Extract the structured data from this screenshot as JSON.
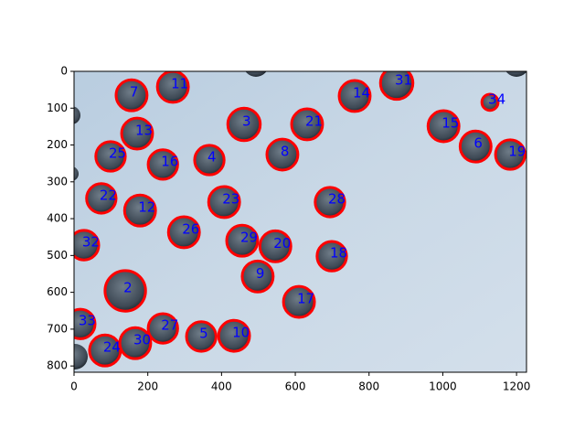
{
  "chart_data": {
    "type": "scatter",
    "x": [
      156,
      268,
      875,
      761,
      1128,
      461,
      632,
      1002,
      171,
      1089,
      1183,
      99,
      565,
      367,
      241,
      74,
      407,
      694,
      179,
      298,
      27,
      456,
      546,
      699,
      498,
      139,
      610,
      17,
      241,
      345,
      434,
      166,
      84
    ],
    "values": [
      65,
      42,
      32,
      67,
      84,
      144,
      144,
      149,
      169,
      204,
      226,
      231,
      226,
      241,
      253,
      345,
      355,
      355,
      378,
      437,
      472,
      460,
      475,
      502,
      557,
      596,
      626,
      686,
      698,
      720,
      718,
      738,
      758
    ],
    "sizes": [
      42,
      42,
      44,
      42,
      22,
      44,
      42,
      42,
      42,
      42,
      40,
      40,
      42,
      40,
      40,
      40,
      42,
      40,
      42,
      42,
      40,
      42,
      42,
      40,
      42,
      55,
      42,
      40,
      40,
      40,
      42,
      42,
      42
    ],
    "labels": [
      "7",
      "11",
      "31",
      "14",
      "34",
      "3",
      "21",
      "15",
      "13",
      "6",
      "19",
      "25",
      "8",
      "4",
      "16",
      "22",
      "23",
      "28",
      "12",
      "26",
      "32",
      "29",
      "20",
      "18",
      "9",
      "2",
      "17",
      "33",
      "27",
      "5",
      "10",
      "30",
      "24"
    ],
    "color": "#ff0000",
    "label_color": "#0000ff",
    "xlim": [
      0,
      1227
    ],
    "ylim": [
      817,
      0
    ],
    "xticks": [
      0,
      200,
      400,
      600,
      800,
      1000,
      1200
    ],
    "yticks": [
      0,
      100,
      200,
      300,
      400,
      500,
      600,
      700,
      800
    ]
  }
}
